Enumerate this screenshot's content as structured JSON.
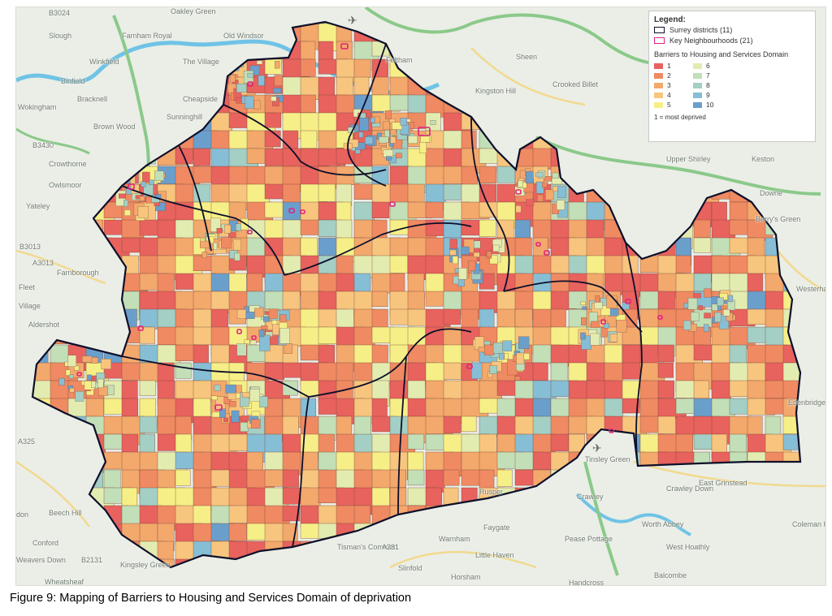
{
  "caption": "Figure 9: Mapping of Barriers to Housing and Services Domain of deprivation",
  "legend": {
    "title": "Legend:",
    "districts_label": "Surrey districts (11)",
    "neighbourhoods_label": "Key Neighbourhoods (21)",
    "domain_title": "Barriers to Housing and Services Domain",
    "note": "1 = most deprived",
    "deciles": [
      {
        "label": "1",
        "color": "#e8625e"
      },
      {
        "label": "2",
        "color": "#ef8a62"
      },
      {
        "label": "3",
        "color": "#f3a86c"
      },
      {
        "label": "4",
        "color": "#f7c57d"
      },
      {
        "label": "5",
        "color": "#f6ef87"
      },
      {
        "label": "6",
        "color": "#e3ecb0"
      },
      {
        "label": "7",
        "color": "#c2dfb7"
      },
      {
        "label": "8",
        "color": "#a3cfc4"
      },
      {
        "label": "9",
        "color": "#86bed5"
      },
      {
        "label": "10",
        "color": "#6a9fcb"
      }
    ],
    "district_outline_color": "#0d0f2a",
    "neighbourhood_outline_color": "#e0237e"
  },
  "places": [
    {
      "name": "B3024"
    },
    {
      "name": "Oakley Green"
    },
    {
      "name": "Farnham Royal"
    },
    {
      "name": "Slough"
    },
    {
      "name": "Old Windsor"
    },
    {
      "name": "Winkfield"
    },
    {
      "name": "The Village"
    },
    {
      "name": "Binfield"
    },
    {
      "name": "Bracknell"
    },
    {
      "name": "Cheapside"
    },
    {
      "name": "Sunninghill"
    },
    {
      "name": "Wokingham"
    },
    {
      "name": "Brown Wood"
    },
    {
      "name": "Crowthorne"
    },
    {
      "name": "Owlsmoor"
    },
    {
      "name": "Yateley"
    },
    {
      "name": "Farnborough"
    },
    {
      "name": "Fleet"
    },
    {
      "name": "Village"
    },
    {
      "name": "Aldershot"
    },
    {
      "name": "Feltham"
    },
    {
      "name": "Kingston Hill"
    },
    {
      "name": "Crooked Billet"
    },
    {
      "name": "Upper Shirley"
    },
    {
      "name": "Keston"
    },
    {
      "name": "Downe"
    },
    {
      "name": "Berry's Green"
    },
    {
      "name": "Westerham"
    },
    {
      "name": "Edenbridge"
    },
    {
      "name": "Tinsley Green"
    },
    {
      "name": "Rusper"
    },
    {
      "name": "Crawley"
    },
    {
      "name": "Crawley Down"
    },
    {
      "name": "East Grinstead"
    },
    {
      "name": "Worth Abbey"
    },
    {
      "name": "West Hoathly"
    },
    {
      "name": "Coleman Hatch"
    },
    {
      "name": "Faygate"
    },
    {
      "name": "Pease Pottage"
    },
    {
      "name": "Warnham"
    },
    {
      "name": "Tisman's Common"
    },
    {
      "name": "Slinfold"
    },
    {
      "name": "Horsham"
    },
    {
      "name": "Little Haven"
    },
    {
      "name": "Balcombe"
    },
    {
      "name": "Beech Hill"
    },
    {
      "name": "Conford"
    },
    {
      "name": "Weavers Down"
    },
    {
      "name": "Wheatsheaf"
    },
    {
      "name": "Kingsley Green"
    },
    {
      "name": "Sheen"
    },
    {
      "name": "A281"
    },
    {
      "name": "B2131"
    },
    {
      "name": "A325"
    },
    {
      "name": "B3430"
    },
    {
      "name": "B3013"
    },
    {
      "name": "A3013"
    },
    {
      "name": "Handcross"
    },
    {
      "name": "don"
    }
  ]
}
